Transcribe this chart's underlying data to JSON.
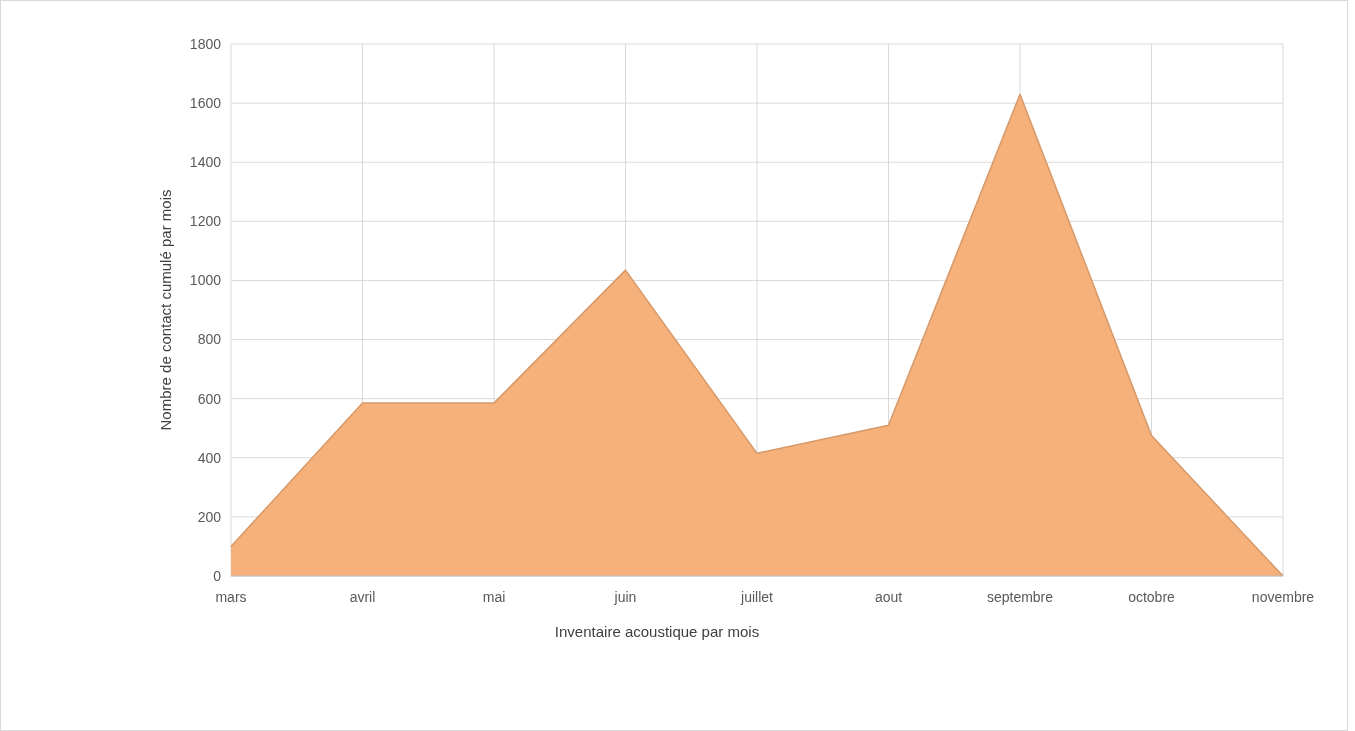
{
  "chart_data": {
    "type": "area",
    "xlabel": "Inventaire acoustique par mois",
    "ylabel": "Nombre de contact cumulé par mois",
    "categories": [
      "mars",
      "avril",
      "mai",
      "juin",
      "juillet",
      "aout",
      "septembre",
      "octobre",
      "novembre"
    ],
    "series": [
      {
        "color": "#f6b07a",
        "values": [
          100,
          585,
          585,
          1035,
          415,
          510,
          1630,
          475,
          0
        ]
      }
    ],
    "ylim": [
      0,
      1800
    ],
    "yticks": [
      0,
      200,
      400,
      600,
      800,
      1000,
      1200,
      1400,
      1600,
      1800
    ],
    "grid": true
  }
}
